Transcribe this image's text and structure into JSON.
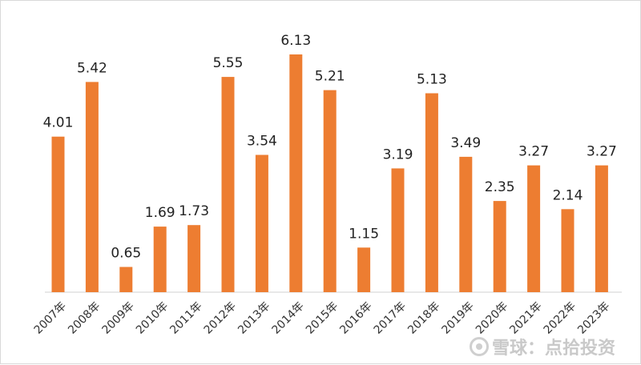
{
  "chart_data": {
    "type": "bar",
    "title": "",
    "xlabel": "",
    "ylabel": "",
    "categories": [
      "2007年",
      "2008年",
      "2009年",
      "2010年",
      "2011年",
      "2012年",
      "2013年",
      "2014年",
      "2015年",
      "2016年",
      "2017年",
      "2018年",
      "2019年",
      "2020年",
      "2021年",
      "2022年",
      "2023年"
    ],
    "values": [
      4.01,
      5.42,
      0.65,
      1.69,
      1.73,
      5.55,
      3.54,
      6.13,
      5.21,
      1.15,
      3.19,
      5.13,
      3.49,
      2.35,
      3.27,
      2.14,
      3.27
    ],
    "value_labels": [
      "4.01",
      "5.42",
      "0.65",
      "1.69",
      "1.73",
      "5.55",
      "3.54",
      "6.13",
      "5.21",
      "1.15",
      "3.19",
      "5.13",
      "3.49",
      "2.35",
      "3.27",
      "2.14",
      "3.27"
    ],
    "ylim": [
      0,
      6.13
    ],
    "grid": false,
    "legend": "none",
    "bar_color": "#ED7D31"
  },
  "watermark": {
    "text": "雪球：点拾投资"
  }
}
